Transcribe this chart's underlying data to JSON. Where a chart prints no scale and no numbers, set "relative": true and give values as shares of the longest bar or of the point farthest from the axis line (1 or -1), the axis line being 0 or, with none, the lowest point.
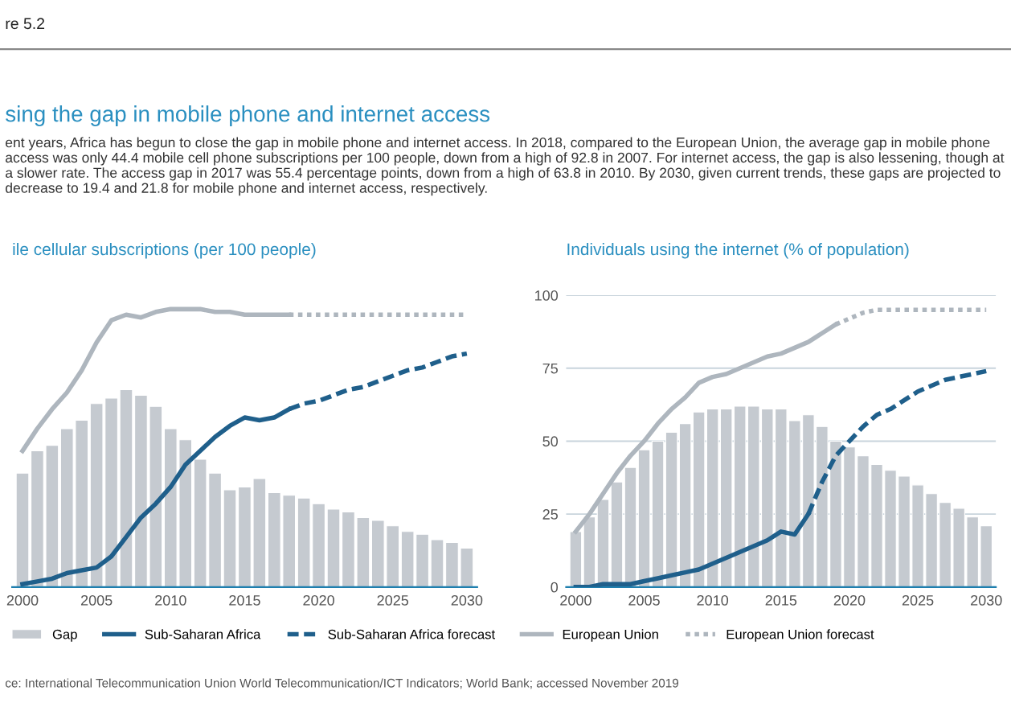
{
  "chart_data": [
    {
      "type": "bar",
      "title": "ile cellular subscriptions (per 100 people)",
      "relative": true,
      "tick_labels": "x",
      "legend": "bottom",
      "annotations": [
        "re 5.2",
        "sing the gap in mobile phone and internet access",
        "ent years, Africa has begun to close the gap in mobile phone and internet access. In 2018, compared to the European Union, the average gap in mobile phone access was only 44.4 mobile cell phone subscriptions per 100 people, down from a high of 92.8 in 2007. For internet access, the gap is also lessening, though at a slower rate. The access gap in 2017 was 55.4 percentage points, down from a high of 63.8 in 2010. By 2030, given current trends, these gaps are projected to decrease to 19.4 and 21.8 for mobile phone and internet access, respectively.",
        "ce: International Telecommunication Union World Telecommunication/ICT Indicators; World Bank; accessed November 2019"
      ],
      "x": [
        2000,
        2001,
        2002,
        2003,
        2004,
        2005,
        2006,
        2007,
        2008,
        2009,
        2010,
        2011,
        2012,
        2013,
        2014,
        2015,
        2016,
        2017,
        2018,
        2019,
        2020,
        2021,
        2022,
        2023,
        2024,
        2025,
        2026,
        2027,
        2028,
        2029,
        2030
      ],
      "xlim": [
        1999.3,
        2030.7
      ],
      "xticks": [
        2000,
        2005,
        2010,
        2015,
        2020,
        2025,
        2030
      ],
      "series": [
        {
          "name": "Gap",
          "color": "#c5cad0",
          "values": [
            0.41,
            0.49,
            0.51,
            0.57,
            0.6,
            0.66,
            0.68,
            0.71,
            0.69,
            0.65,
            0.57,
            0.53,
            0.46,
            0.41,
            0.35,
            0.36,
            0.39,
            0.34,
            0.33,
            0.32,
            0.3,
            0.28,
            0.27,
            0.25,
            0.24,
            0.22,
            0.2,
            0.19,
            0.17,
            0.16,
            0.14
          ]
        },
        {
          "name": "Sub-Saharan Africa",
          "type": "line",
          "color": "#1f5f8b",
          "line_style": "solid",
          "x": [
            2000,
            2001,
            2002,
            2003,
            2004,
            2005,
            2006,
            2007,
            2008,
            2009,
            2010,
            2011,
            2012,
            2013,
            2014,
            2015,
            2016,
            2017,
            2018
          ],
          "values": [
            0.01,
            0.02,
            0.03,
            0.05,
            0.06,
            0.07,
            0.11,
            0.18,
            0.25,
            0.3,
            0.36,
            0.44,
            0.49,
            0.54,
            0.58,
            0.61,
            0.6,
            0.61,
            0.64
          ]
        },
        {
          "name": "Sub-Saharan Africa forecast",
          "type": "line",
          "color": "#1f5f8b",
          "line_style": "dashed",
          "x": [
            2018,
            2019,
            2020,
            2021,
            2022,
            2023,
            2024,
            2025,
            2026,
            2027,
            2028,
            2029,
            2030
          ],
          "values": [
            0.64,
            0.66,
            0.67,
            0.69,
            0.71,
            0.72,
            0.74,
            0.76,
            0.78,
            0.79,
            0.81,
            0.83,
            0.84
          ]
        },
        {
          "name": "European Union",
          "type": "line",
          "color": "#aeb6be",
          "line_style": "solid",
          "x": [
            2000,
            2001,
            2002,
            2003,
            2004,
            2005,
            2006,
            2007,
            2008,
            2009,
            2010,
            2011,
            2012,
            2013,
            2014,
            2015,
            2016,
            2017,
            2018
          ],
          "values": [
            0.49,
            0.57,
            0.64,
            0.7,
            0.78,
            0.88,
            0.96,
            0.98,
            0.97,
            0.99,
            1,
            1,
            1,
            0.99,
            0.99,
            0.98,
            0.98,
            0.98,
            0.98
          ]
        },
        {
          "name": "European Union forecast",
          "type": "line",
          "color": "#aeb6be",
          "line_style": "dotted",
          "x": [
            2018,
            2020,
            2022,
            2024,
            2026,
            2028,
            2030
          ],
          "values": [
            0.98,
            0.98,
            0.98,
            0.98,
            0.98,
            0.98,
            0.98
          ]
        }
      ]
    },
    {
      "type": "bar",
      "title": "Individuals using the internet (% of population)",
      "grid": "y",
      "x": [
        2000,
        2001,
        2002,
        2003,
        2004,
        2005,
        2006,
        2007,
        2008,
        2009,
        2010,
        2011,
        2012,
        2013,
        2014,
        2015,
        2016,
        2017,
        2018,
        2019,
        2020,
        2021,
        2022,
        2023,
        2024,
        2025,
        2026,
        2027,
        2028,
        2029,
        2030
      ],
      "xlim": [
        1999.3,
        2030.7
      ],
      "xticks": [
        2000,
        2005,
        2010,
        2015,
        2020,
        2025,
        2030
      ],
      "ylim": [
        0,
        100
      ],
      "yticks": [
        0,
        25,
        50,
        75,
        100
      ],
      "series": [
        {
          "color": "#c5cad0",
          "values": [
            19,
            24,
            30,
            36,
            41,
            47,
            50,
            53,
            56,
            60,
            61,
            61,
            62,
            62,
            61,
            61,
            57,
            59,
            55,
            50,
            48,
            45,
            42,
            40,
            38,
            35,
            32,
            29,
            27,
            24,
            21
          ]
        },
        {
          "type": "line",
          "color": "#1f5f8b",
          "line_style": "solid",
          "x": [
            2000,
            2001,
            2002,
            2003,
            2004,
            2005,
            2006,
            2007,
            2008,
            2009,
            2010,
            2011,
            2012,
            2013,
            2014,
            2015,
            2016,
            2017
          ],
          "values": [
            0,
            0,
            1,
            1,
            1,
            2,
            3,
            4,
            5,
            6,
            8,
            10,
            12,
            14,
            16,
            19,
            18,
            25
          ]
        },
        {
          "type": "line",
          "color": "#1f5f8b",
          "line_style": "dashed",
          "x": [
            2017,
            2018,
            2019,
            2020,
            2021,
            2022,
            2023,
            2024,
            2025,
            2026,
            2027,
            2028,
            2029,
            2030
          ],
          "values": [
            25,
            36,
            45,
            50,
            55,
            59,
            61,
            64,
            67,
            69,
            71,
            72,
            73,
            74
          ]
        },
        {
          "type": "line",
          "color": "#aeb6be",
          "line_style": "solid",
          "x": [
            2000,
            2001,
            2002,
            2003,
            2004,
            2005,
            2006,
            2007,
            2008,
            2009,
            2010,
            2011,
            2012,
            2013,
            2014,
            2015,
            2016,
            2017,
            2018,
            2019
          ],
          "values": [
            19,
            25,
            32,
            39,
            45,
            50,
            56,
            61,
            65,
            70,
            72,
            73,
            75,
            77,
            79,
            80,
            82,
            84,
            87,
            90
          ]
        },
        {
          "type": "line",
          "color": "#aeb6be",
          "line_style": "dotted",
          "x": [
            2019,
            2020,
            2021,
            2022,
            2023,
            2024,
            2025,
            2026,
            2027,
            2028,
            2029,
            2030
          ],
          "values": [
            90,
            92,
            94,
            95,
            95,
            95,
            95,
            95,
            95,
            95,
            95,
            95
          ]
        }
      ]
    }
  ]
}
